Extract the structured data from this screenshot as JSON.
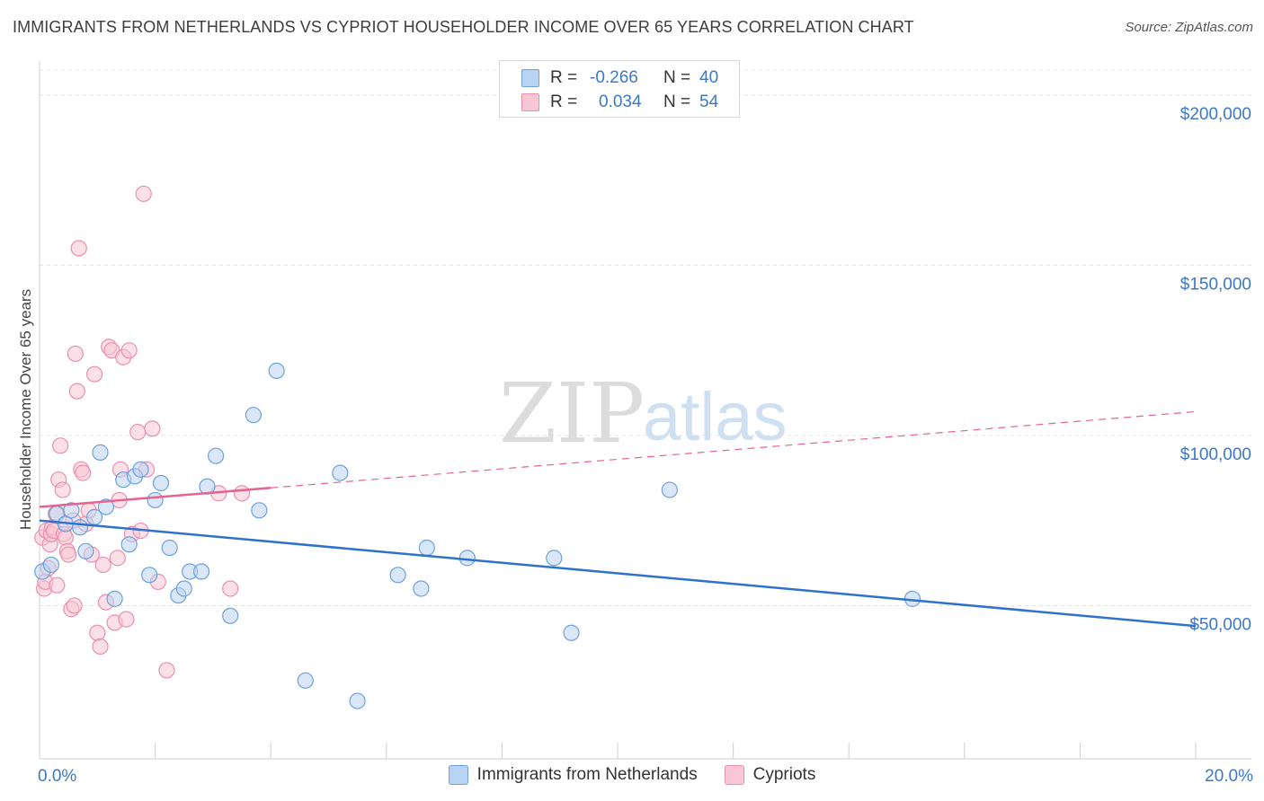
{
  "header": {
    "title": "IMMIGRANTS FROM NETHERLANDS VS CYPRIOT HOUSEHOLDER INCOME OVER 65 YEARS CORRELATION CHART",
    "source": "Source: ZipAtlas.com"
  },
  "watermark": {
    "zip": "ZIP",
    "atlas": "atlas"
  },
  "colors": {
    "blue_fill": "#b9d3f2",
    "blue_stroke": "#6ea0dc",
    "blue_line": "#2f72cc",
    "pink_fill": "#f8c6d4",
    "pink_stroke": "#eb8fae",
    "pink_line": "#e5648f",
    "axis_text": "#3c78c8",
    "grid": "#e3e3e3"
  },
  "legend": {
    "rows": [
      {
        "r_label": "R =",
        "r_value": "-0.266",
        "n_label": "N =",
        "n_value": "40"
      },
      {
        "r_label": "R =",
        "r_value": "0.034",
        "n_label": "N =",
        "n_value": "54"
      }
    ]
  },
  "bottom_legend": {
    "series1": "Immigrants from Netherlands",
    "series2": "Cypriots"
  },
  "chart_data": {
    "type": "scatter",
    "title": "IMMIGRANTS FROM NETHERLANDS VS CYPRIOT HOUSEHOLDER INCOME OVER 65 YEARS CORRELATION CHART",
    "xlabel": "",
    "ylabel": "Householder Income Over 65 years",
    "xlim": [
      0,
      20
    ],
    "ylim": [
      5000,
      210000
    ],
    "x_tick_labels": [
      "0.0%",
      "20.0%"
    ],
    "y_ticks": [
      50000,
      100000,
      150000,
      200000
    ],
    "y_tick_labels": [
      "$50,000",
      "$100,000",
      "$150,000",
      "$200,000"
    ],
    "grid": true,
    "legend_position": "top-center",
    "series": [
      {
        "name": "Immigrants from Netherlands",
        "r": -0.266,
        "n": 40,
        "trend": {
          "x0": 0,
          "y0": 75000,
          "x1": 20,
          "y1": 44000,
          "dashed_from": null
        },
        "points": [
          [
            0.05,
            60000
          ],
          [
            0.2,
            62000
          ],
          [
            0.3,
            77000
          ],
          [
            0.45,
            74000
          ],
          [
            0.55,
            78000
          ],
          [
            0.7,
            73000
          ],
          [
            0.8,
            66000
          ],
          [
            0.95,
            76000
          ],
          [
            1.05,
            95000
          ],
          [
            1.15,
            79000
          ],
          [
            1.3,
            52000
          ],
          [
            1.45,
            87000
          ],
          [
            1.55,
            68000
          ],
          [
            1.65,
            88000
          ],
          [
            1.75,
            90000
          ],
          [
            1.9,
            59000
          ],
          [
            2.0,
            81000
          ],
          [
            2.1,
            86000
          ],
          [
            2.25,
            67000
          ],
          [
            2.4,
            53000
          ],
          [
            2.5,
            55000
          ],
          [
            2.6,
            60000
          ],
          [
            2.8,
            60000
          ],
          [
            2.9,
            85000
          ],
          [
            3.05,
            94000
          ],
          [
            3.3,
            47000
          ],
          [
            3.7,
            106000
          ],
          [
            3.8,
            78000
          ],
          [
            4.1,
            119000
          ],
          [
            4.6,
            28000
          ],
          [
            5.2,
            89000
          ],
          [
            5.5,
            22000
          ],
          [
            6.2,
            59000
          ],
          [
            6.6,
            55000
          ],
          [
            6.7,
            67000
          ],
          [
            7.4,
            64000
          ],
          [
            8.9,
            64000
          ],
          [
            9.2,
            42000
          ],
          [
            10.9,
            84000
          ],
          [
            15.1,
            52000
          ]
        ]
      },
      {
        "name": "Cypriots",
        "r": 0.034,
        "n": 54,
        "trend": {
          "x0": 0,
          "y0": 79000,
          "x1": 20,
          "y1": 107000,
          "solid_until": 4.0
        },
        "points": [
          [
            0.05,
            70000
          ],
          [
            0.08,
            55000
          ],
          [
            0.1,
            57000
          ],
          [
            0.12,
            72000
          ],
          [
            0.15,
            61000
          ],
          [
            0.18,
            68000
          ],
          [
            0.2,
            71000
          ],
          [
            0.22,
            73000
          ],
          [
            0.25,
            72000
          ],
          [
            0.28,
            77000
          ],
          [
            0.3,
            56000
          ],
          [
            0.33,
            87000
          ],
          [
            0.36,
            97000
          ],
          [
            0.4,
            84000
          ],
          [
            0.42,
            71000
          ],
          [
            0.45,
            70000
          ],
          [
            0.48,
            66000
          ],
          [
            0.5,
            65000
          ],
          [
            0.55,
            49000
          ],
          [
            0.6,
            50000
          ],
          [
            0.62,
            124000
          ],
          [
            0.65,
            113000
          ],
          [
            0.68,
            155000
          ],
          [
            0.72,
            90000
          ],
          [
            0.75,
            89000
          ],
          [
            0.8,
            74000
          ],
          [
            0.85,
            78000
          ],
          [
            0.9,
            65000
          ],
          [
            0.95,
            118000
          ],
          [
            1.0,
            42000
          ],
          [
            1.05,
            38000
          ],
          [
            1.1,
            62000
          ],
          [
            1.15,
            51000
          ],
          [
            1.2,
            126000
          ],
          [
            1.25,
            125000
          ],
          [
            1.3,
            45000
          ],
          [
            1.35,
            64000
          ],
          [
            1.38,
            81000
          ],
          [
            1.4,
            90000
          ],
          [
            1.45,
            123000
          ],
          [
            1.5,
            46000
          ],
          [
            1.55,
            125000
          ],
          [
            1.6,
            71000
          ],
          [
            1.7,
            101000
          ],
          [
            1.8,
            171000
          ],
          [
            1.85,
            90000
          ],
          [
            1.95,
            102000
          ],
          [
            2.05,
            57000
          ],
          [
            2.2,
            31000
          ],
          [
            3.1,
            83000
          ],
          [
            3.3,
            55000
          ],
          [
            3.5,
            83000
          ],
          [
            1.75,
            72000
          ],
          [
            0.58,
            75000
          ]
        ]
      }
    ]
  }
}
